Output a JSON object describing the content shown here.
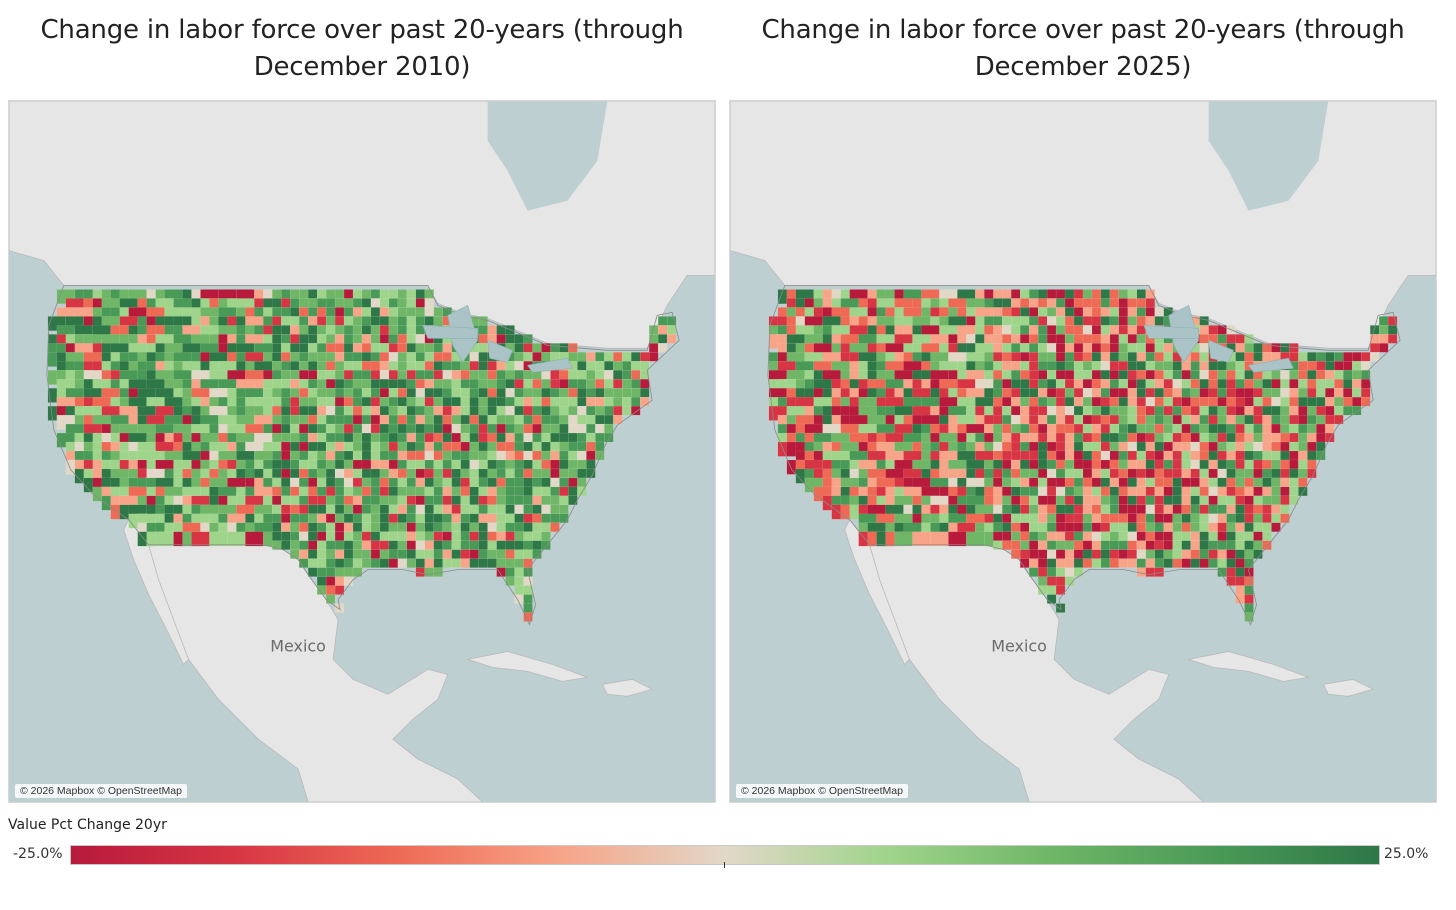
{
  "panels": [
    {
      "title": "Change in labor force over past 20-years (through December 2010)",
      "attribution": "© 2026 Mapbox © OpenStreetMap",
      "country_label": "Mexico",
      "green_bias": 0.72,
      "seed": 11
    },
    {
      "title": "Change in labor force over past 20-years (through December 2025)",
      "attribution": "© 2026 Mapbox © OpenStreetMap",
      "country_label": "Mexico",
      "green_bias": 0.45,
      "seed": 29
    }
  ],
  "legend": {
    "title": "Value Pct Change 20yr",
    "min_label": "-25.0%",
    "max_label": "25.0%",
    "min_value": -25,
    "max_value": 25,
    "colors": [
      "#b71a3b",
      "#d73544",
      "#ee6a55",
      "#f7a488",
      "#e2d8c8",
      "#9fd48b",
      "#6fb667",
      "#4a9a57",
      "#2e7747"
    ]
  },
  "colors": {
    "water": "#bdcfd0",
    "land": "#e6e6e6",
    "border": "#b9b9b9"
  }
}
